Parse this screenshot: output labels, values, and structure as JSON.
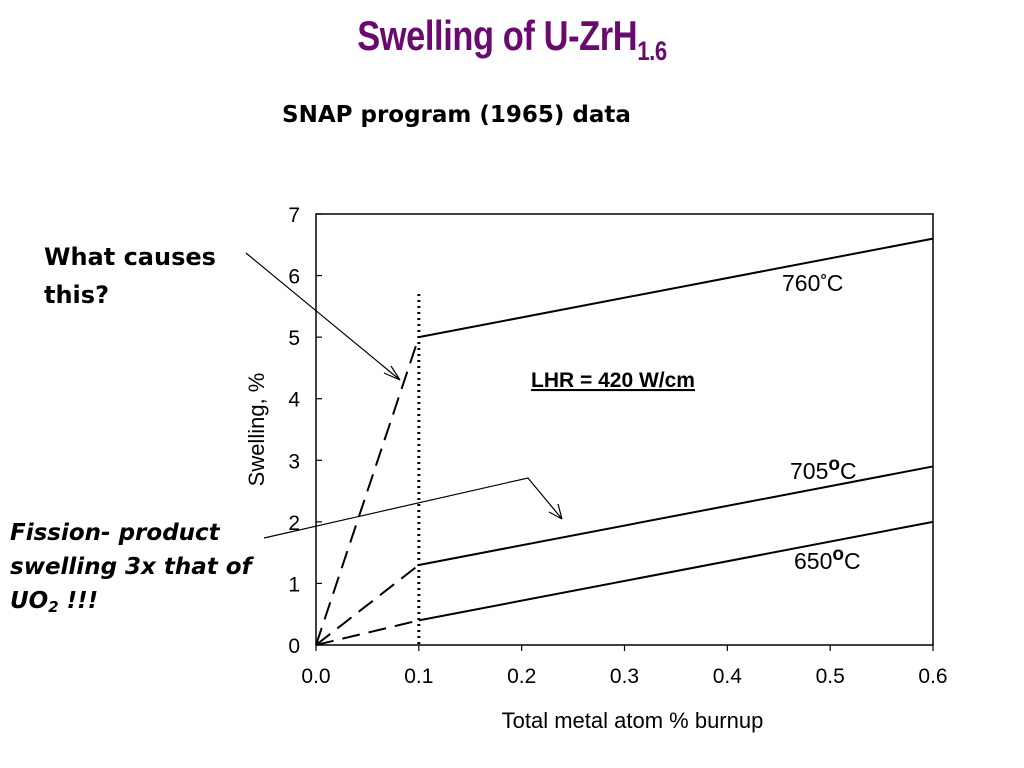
{
  "slide": {
    "title": "Swelling of U-ZrH",
    "title_subscript": "1.6",
    "subtitle": "SNAP program (1965) data",
    "callout_question": "What causes this?",
    "callout_swelling": "Fission- product swelling 3x that of UO",
    "callout_swelling_subscript": "2",
    "callout_swelling_suffix": " !!!"
  },
  "colors": {
    "title": "#6a0a70",
    "text": "#000000"
  },
  "chart_data": {
    "type": "line",
    "xlabel": "Total metal atom % burnup",
    "ylabel": "Swelling, %",
    "xlim": [
      0.0,
      0.6
    ],
    "ylim": [
      0,
      7
    ],
    "x_ticks": [
      0.0,
      0.1,
      0.2,
      0.3,
      0.4,
      0.5,
      0.6
    ],
    "x_tick_labels": [
      "0.0",
      "0.1",
      "0.2",
      "0.3",
      "0.4",
      "0.5",
      "0.6"
    ],
    "y_ticks": [
      0,
      1,
      2,
      3,
      4,
      5,
      6,
      7
    ],
    "y_tick_labels": [
      "0",
      "1",
      "2",
      "3",
      "4",
      "5",
      "6",
      "7"
    ],
    "grid": false,
    "annotation": "LHR = 420 W/cm",
    "threshold_x": 0.1,
    "series": [
      {
        "name": "760°C",
        "label_main": "760",
        "label_deg": "°",
        "label_unit": "C",
        "dashed": [
          [
            0.0,
            0.0
          ],
          [
            0.1,
            5.0
          ]
        ],
        "solid": [
          [
            0.1,
            5.0
          ],
          [
            0.6,
            6.6
          ]
        ]
      },
      {
        "name": "705°C",
        "label_main": "705",
        "label_deg": "o",
        "label_unit": "C",
        "dashed": [
          [
            0.0,
            0.0
          ],
          [
            0.1,
            1.3
          ]
        ],
        "solid": [
          [
            0.1,
            1.3
          ],
          [
            0.6,
            2.9
          ]
        ]
      },
      {
        "name": "650°C",
        "label_main": "650",
        "label_deg": "o",
        "label_unit": "C",
        "dashed": [
          [
            0.0,
            0.0
          ],
          [
            0.1,
            0.4
          ]
        ],
        "solid": [
          [
            0.1,
            0.4
          ],
          [
            0.6,
            2.0
          ]
        ]
      }
    ]
  }
}
